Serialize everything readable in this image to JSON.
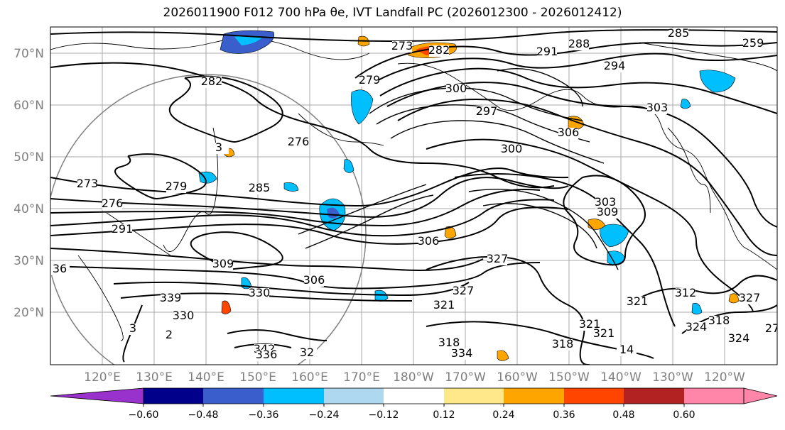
{
  "title": "2026011900 F012 700 hPa θe, IVT Landfall PC (2026012300 - 2026012412)",
  "map": {
    "lat_labels": [
      "70°N",
      "60°N",
      "50°N",
      "40°N",
      "30°N",
      "20°N"
    ],
    "lon_labels": [
      "120°E",
      "130°E",
      "140°E",
      "150°E",
      "160°E",
      "170°E",
      "180°W",
      "170°W",
      "160°W",
      "150°W",
      "140°W",
      "130°W",
      "120°W"
    ],
    "contour_labels": [
      "285",
      "288",
      "291",
      "294",
      "259",
      "273",
      "282",
      "279",
      "300",
      "297",
      "303",
      "306",
      "300",
      "276",
      "282",
      "273",
      "279",
      "285",
      "276",
      "291",
      "309",
      "306",
      "306",
      "303",
      "309",
      "330",
      "339",
      "330",
      "327",
      "321",
      "312",
      "327",
      "321",
      "324",
      "318",
      "334",
      "342",
      "336",
      "32",
      "318",
      "318",
      "321",
      "327",
      "321",
      "324",
      "27",
      "14",
      "2",
      "3",
      "36",
      "3"
    ]
  },
  "colorbar": {
    "ticks": [
      "−0.60",
      "−0.48",
      "−0.36",
      "−0.24",
      "−0.12",
      "0.12",
      "0.24",
      "0.36",
      "0.48",
      "0.60"
    ],
    "colors": [
      "#9932cc",
      "#00008b",
      "#3a5fcd",
      "#00bfff",
      "#add8f0",
      "#ffffff",
      "#ffe88a",
      "#ffa500",
      "#ff4500",
      "#b22222",
      "#ff86a8",
      "#ff86a8"
    ]
  },
  "colors": {
    "positive_light": "#ffe88a",
    "positive_mid": "#ffa500",
    "positive_strong": "#ff4500",
    "negative_light": "#add8f0",
    "negative_mid": "#00bfff",
    "negative_strong": "#3a5fcd",
    "gridline": "#a0a0a0"
  }
}
